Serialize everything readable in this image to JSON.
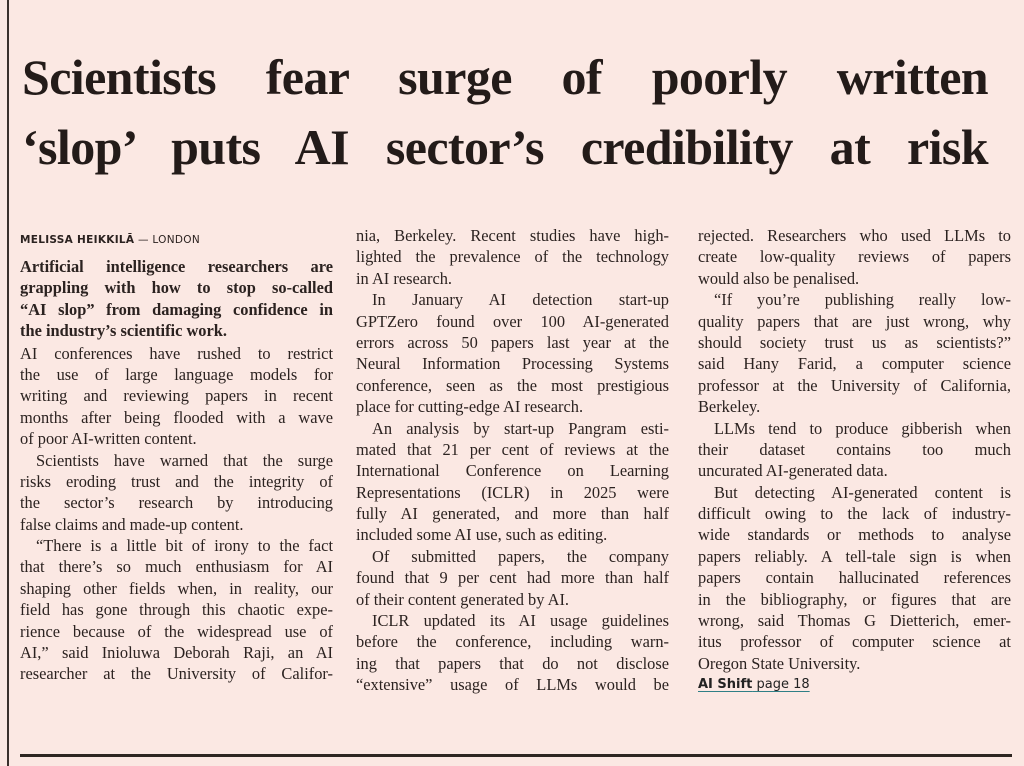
{
  "headline": {
    "lines": [
      "Scientists fear surge of poorly written",
      "‘slop’ puts AI sector’s credibility at risk"
    ]
  },
  "byline": {
    "author": "MELISSA HEIKKILĀ",
    "separator": " — ",
    "location": "LONDON"
  },
  "columns": [
    {
      "paragraphs": [
        {
          "lead": true,
          "indent": false,
          "lines": [
            "Artificial intelligence researchers are",
            "grappling with how to stop so-called",
            "“AI slop” from damaging confidence in",
            "the industry’s scientific work."
          ]
        },
        {
          "indent": false,
          "lines": [
            "AI conferences have rushed to restrict",
            "the use of large language models for",
            "writing and reviewing papers in recent",
            "months after being flooded with a wave",
            "of poor AI-written content."
          ]
        },
        {
          "indent": true,
          "lines": [
            "Scientists have warned that the surge",
            "risks eroding trust and the integrity of",
            "the sector’s research by introducing",
            "false claims and made-up content."
          ]
        },
        {
          "indent": true,
          "cont": true,
          "lines": [
            "“There is a little bit of irony to the fact",
            "that there’s so much enthusiasm for AI",
            "shaping other fields when, in reality, our",
            "field has gone through this chaotic expe-",
            "rience because of the widespread use of",
            "AI,” said Inioluwa Deborah Raji, an AI",
            "researcher at the University of Califor-"
          ]
        }
      ]
    },
    {
      "paragraphs": [
        {
          "indent": false,
          "lines": [
            "nia, Berkeley. Recent studies have high-",
            "lighted the prevalence of the technology",
            "in AI research."
          ]
        },
        {
          "indent": true,
          "lines": [
            "In January AI detection start-up",
            "GPTZero found over 100 AI-generated",
            "errors across 50 papers last year at the",
            "Neural Information Processing Systems",
            "conference, seen as the most prestigious",
            "place for cutting-edge AI research."
          ]
        },
        {
          "indent": true,
          "lines": [
            "An analysis by start-up Pangram esti-",
            "mated that 21 per cent of reviews at the",
            "International Conference on Learning",
            "Representations (ICLR) in 2025 were",
            "fully AI generated, and more than half",
            "included some AI use, such as editing."
          ]
        },
        {
          "indent": true,
          "lines": [
            "Of submitted papers, the company",
            "found that 9 per cent had more than half",
            "of their content generated by AI."
          ]
        },
        {
          "indent": true,
          "cont": true,
          "lines": [
            "ICLR updated its AI usage guidelines",
            "before the conference, including warn-",
            "ing that papers that do not disclose",
            "“extensive” usage of LLMs would be"
          ]
        }
      ]
    },
    {
      "paragraphs": [
        {
          "indent": false,
          "lines": [
            "rejected. Researchers who used LLMs to",
            "create low-quality reviews of papers",
            "would also be penalised."
          ]
        },
        {
          "indent": true,
          "lines": [
            "“If you’re publishing really low-",
            "quality papers that are just wrong, why",
            "should society trust us as scientists?”",
            "said Hany Farid, a computer science",
            "professor at the University of California,",
            "Berkeley."
          ]
        },
        {
          "indent": true,
          "lines": [
            "LLMs tend to produce gibberish when",
            "their dataset contains too much",
            "uncurated AI-generated data."
          ]
        },
        {
          "indent": true,
          "lines": [
            "But detecting AI-generated content is",
            "difficult owing to the lack of industry-",
            "wide standards or methods to analyse",
            "papers reliably. A tell-tale sign is when",
            "papers contain hallucinated references",
            "in the bibliography, or figures that are",
            "wrong, said Thomas G Dietterich, emer-",
            "itus professor of computer science at",
            "Oregon State University."
          ]
        }
      ]
    }
  ],
  "continuation": {
    "section": "AI Shift",
    "page": "page 18"
  },
  "colors": {
    "background": "#fbe8e3",
    "text": "#2b2220",
    "link_underline": "#2f7f86"
  }
}
